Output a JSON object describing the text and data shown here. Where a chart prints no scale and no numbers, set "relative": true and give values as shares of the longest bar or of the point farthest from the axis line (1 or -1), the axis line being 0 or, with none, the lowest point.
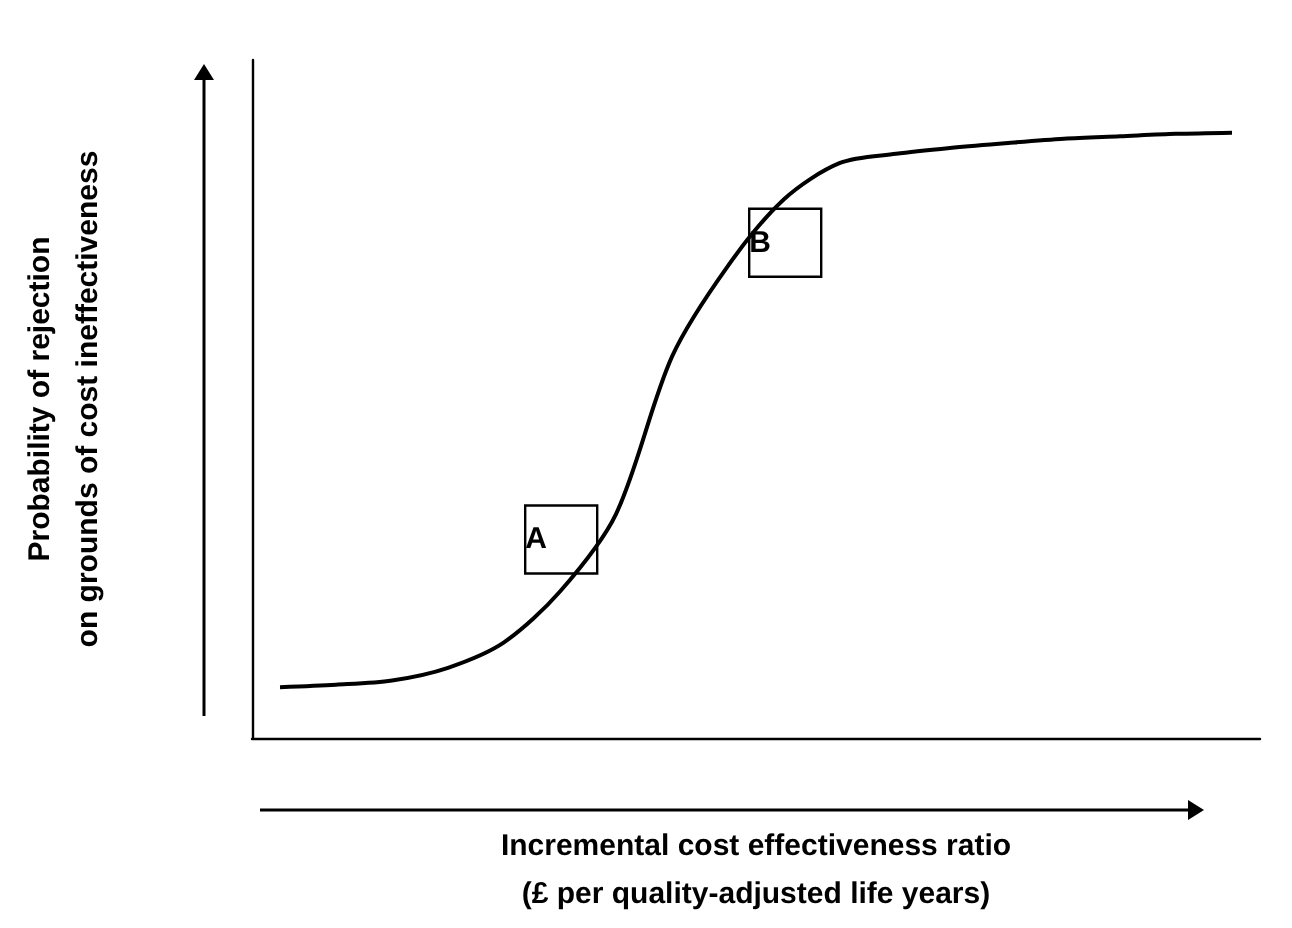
{
  "chart_data": {
    "type": "line",
    "relative": true,
    "xlabel": "Incremental cost effectiveness ratio\n(£ per quality-adjusted life years)",
    "ylabel": "Probability of rejection\non grounds of cost ineffectiveness",
    "categories": [
      null,
      null,
      null,
      null,
      null,
      null,
      null,
      null,
      null,
      null,
      null,
      null,
      null,
      null,
      null,
      null,
      null,
      null
    ],
    "series": [
      {
        "color": "#000000",
        "values": [
          0.084,
          0.088,
          0.095,
          0.116,
          0.158,
          0.242,
          0.37,
          0.63,
          0.78,
          0.89,
          0.95,
          0.965,
          0.975,
          0.983,
          0.99,
          0.994,
          0.998,
          1.0
        ]
      }
    ],
    "annotations": [
      "A",
      "B"
    ],
    "marker": "none",
    "line_style": "solid",
    "grid": false
  }
}
